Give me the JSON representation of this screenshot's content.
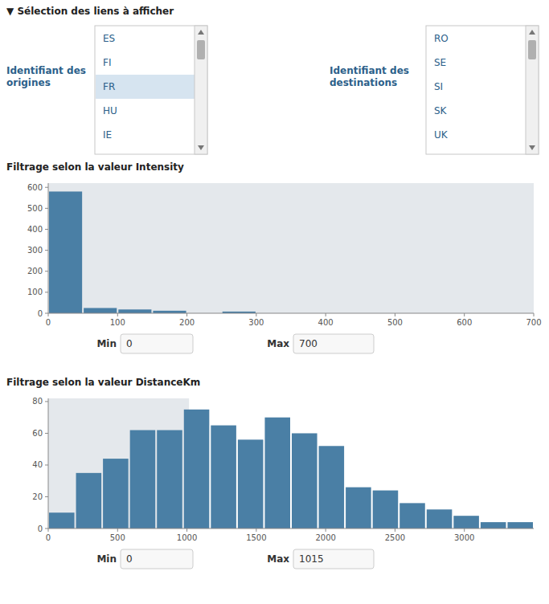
{
  "chart_data": [
    {
      "type": "histogram",
      "title": "Filtrage selon la valeur Intensity",
      "bins": [
        0,
        50,
        100,
        150,
        200,
        250,
        300,
        350,
        400,
        450,
        500,
        550,
        600,
        650,
        700
      ],
      "values": [
        580,
        25,
        18,
        12,
        0,
        8,
        0,
        0,
        0,
        0,
        0,
        0,
        0,
        0
      ],
      "color": "#4a7fa5",
      "xlim": [
        0,
        700
      ],
      "xticks": [
        0,
        100,
        200,
        300,
        400,
        500,
        600,
        700
      ],
      "ylim": [
        0,
        620
      ],
      "yticks": [
        0,
        100,
        200,
        300,
        400,
        500,
        600
      ],
      "grid": false,
      "filter_min_label": "Min",
      "filter_max_label": "Max",
      "filter_min": 0,
      "filter_max": 700
    },
    {
      "type": "histogram",
      "title": "Filtrage selon la valeur DistanceKm",
      "bins": [
        0,
        194.44444444444446,
        388.8888888888889,
        583.3333333333334,
        777.7777777777778,
        972.2222222222223,
        1166.6666666666667,
        1361.111111111111,
        1555.5555555555557,
        1750,
        1944.4444444444446,
        2138.8888888888887,
        2333.3333333333335,
        2527.777777777778,
        2722.2222222222226,
        2916.666666666667,
        3111.1111111111113,
        3305.5555555555557,
        3500
      ],
      "values": [
        10,
        35,
        44,
        62,
        62,
        75,
        65,
        56,
        70,
        60,
        52,
        26,
        24,
        16,
        12,
        8,
        4,
        4
      ],
      "color": "#4a7fa5",
      "xlim": [
        0,
        3500
      ],
      "xticks": [
        0,
        500,
        1000,
        1500,
        2000,
        2500,
        3000
      ],
      "ylim": [
        0,
        82
      ],
      "yticks": [
        0,
        20,
        40,
        60,
        80
      ],
      "grid": false,
      "filter_min_label": "Min",
      "filter_max_label": "Max",
      "filter_min": 0,
      "filter_max": 1015
    }
  ],
  "selection": {
    "title": "▼ Sélection des liens à afficher",
    "origins_label": "Identifiant des\norigines",
    "origins": [
      "ES",
      "FI",
      "FR",
      "HU",
      "IE"
    ],
    "origins_selected": "FR",
    "destinations_label": "Identifiant des\ndestinations",
    "destinations": [
      "RO",
      "SE",
      "SI",
      "SK",
      "UK"
    ]
  }
}
